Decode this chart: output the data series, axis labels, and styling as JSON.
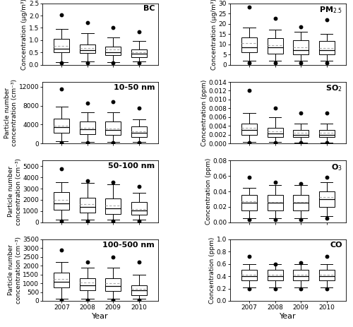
{
  "panels_left": [
    {
      "title": "BC",
      "title_bold": true,
      "ylabel": "Concentration (μg/m³)",
      "ylim": [
        0.0,
        2.5
      ],
      "yticks": [
        0.0,
        0.5,
        1.0,
        1.5,
        2.0,
        2.5
      ],
      "ytick_labels": [
        "0.0",
        "0.5",
        "1.0",
        "1.5",
        "2.0",
        "2.5"
      ],
      "years": [
        "2007",
        "2008",
        "2009",
        "2010"
      ],
      "p5": [
        0.08,
        0.08,
        0.08,
        0.08
      ],
      "p10": [
        0.12,
        0.14,
        0.12,
        0.13
      ],
      "q25": [
        0.52,
        0.48,
        0.38,
        0.32
      ],
      "med": [
        0.65,
        0.58,
        0.5,
        0.44
      ],
      "mean": [
        0.78,
        0.67,
        0.62,
        0.52
      ],
      "q75": [
        1.05,
        0.82,
        0.73,
        0.63
      ],
      "p90": [
        1.45,
        1.28,
        1.12,
        0.98
      ],
      "p95": [
        2.02,
        1.7,
        1.52,
        1.35
      ]
    },
    {
      "title": "10-50 nm",
      "title_bold": true,
      "ylabel": "Particle number\nconcentration (cm⁻³)",
      "ylim": [
        0,
        13000
      ],
      "yticks": [
        0,
        4000,
        8000,
        12000
      ],
      "ytick_labels": [
        "0",
        "4000",
        "8000",
        "12000"
      ],
      "years": [
        "2007",
        "2008",
        "2009",
        "2010"
      ],
      "p5": [
        200,
        180,
        180,
        180
      ],
      "p10": [
        400,
        380,
        350,
        330
      ],
      "q25": [
        2200,
        1900,
        1800,
        1300
      ],
      "med": [
        3400,
        3000,
        2800,
        2200
      ],
      "mean": [
        3700,
        3300,
        3100,
        2600
      ],
      "q75": [
        5200,
        4600,
        4600,
        3600
      ],
      "p90": [
        7800,
        6600,
        6600,
        5100
      ],
      "p95": [
        11500,
        8500,
        8800,
        7500
      ]
    },
    {
      "title": "50-100 nm",
      "title_bold": true,
      "ylabel": "Particle number\nconcentration (cm⁻³)",
      "ylim": [
        0,
        5500
      ],
      "yticks": [
        0,
        1000,
        2000,
        3000,
        4000,
        5000
      ],
      "ytick_labels": [
        "0",
        "1000",
        "2000",
        "3000",
        "4000",
        "5000"
      ],
      "years": [
        "2007",
        "2008",
        "2009",
        "2010"
      ],
      "p5": [
        100,
        100,
        100,
        100
      ],
      "p10": [
        200,
        200,
        200,
        200
      ],
      "q25": [
        1100,
        850,
        750,
        650
      ],
      "med": [
        1700,
        1350,
        1250,
        1050
      ],
      "mean": [
        2000,
        1600,
        1500,
        1200
      ],
      "q75": [
        2700,
        2200,
        2100,
        1800
      ],
      "p90": [
        3600,
        3500,
        3400,
        2600
      ],
      "p95": [
        4800,
        3700,
        3600,
        3200
      ]
    },
    {
      "title": "100-500 nm",
      "title_bold": true,
      "ylabel": "Particle number\nconcentration (cm⁻³)",
      "ylim": [
        0,
        3500
      ],
      "yticks": [
        0,
        500,
        1000,
        1500,
        2000,
        2500,
        3000,
        3500
      ],
      "ytick_labels": [
        "0",
        "500",
        "1000",
        "1500",
        "2000",
        "2500",
        "3000",
        "3500"
      ],
      "years": [
        "2007",
        "2008",
        "2009",
        "2010"
      ],
      "p5": [
        50,
        50,
        50,
        50
      ],
      "p10": [
        100,
        100,
        100,
        100
      ],
      "q25": [
        750,
        600,
        550,
        300
      ],
      "med": [
        1100,
        900,
        850,
        600
      ],
      "mean": [
        1250,
        1050,
        1000,
        700
      ],
      "q75": [
        1600,
        1300,
        1300,
        900
      ],
      "p90": [
        2200,
        1900,
        1900,
        1500
      ],
      "p95": [
        2900,
        2200,
        2500,
        2200
      ]
    }
  ],
  "panels_right": [
    {
      "title": "PM$_{2.5}$",
      "title_bold": true,
      "ylabel": "Concentration (μg/m³)",
      "ylim": [
        0,
        30
      ],
      "yticks": [
        0,
        5,
        10,
        15,
        20,
        25,
        30
      ],
      "ytick_labels": [
        "0",
        "5",
        "10",
        "15",
        "20",
        "25",
        "30"
      ],
      "years": [
        "2007",
        "2008",
        "2009",
        "2010"
      ],
      "p5": [
        1.0,
        1.0,
        1.0,
        1.0
      ],
      "p10": [
        2.0,
        2.0,
        2.0,
        2.0
      ],
      "q25": [
        6.0,
        5.5,
        5.0,
        5.0
      ],
      "med": [
        8.5,
        8.5,
        7.0,
        7.0
      ],
      "mean": [
        10.5,
        9.5,
        8.5,
        8.0
      ],
      "q75": [
        13.5,
        13.0,
        12.0,
        11.5
      ],
      "p90": [
        18.0,
        17.0,
        16.0,
        15.0
      ],
      "p95": [
        28.0,
        22.5,
        18.5,
        22.0
      ]
    },
    {
      "title": "SO$_2$",
      "title_bold": true,
      "ylabel": "Concentration (ppm)",
      "ylim": [
        0.0,
        0.014
      ],
      "yticks": [
        0.0,
        0.002,
        0.004,
        0.006,
        0.008,
        0.01,
        0.012,
        0.014
      ],
      "ytick_labels": [
        "0.000",
        "0.002",
        "0.004",
        "0.006",
        "0.008",
        "0.010",
        "0.012",
        "0.014"
      ],
      "years": [
        "2007",
        "2008",
        "2009",
        "2010"
      ],
      "p5": [
        0.0002,
        0.00015,
        0.0001,
        0.0001
      ],
      "p10": [
        0.0004,
        0.0003,
        0.0002,
        0.0002
      ],
      "q25": [
        0.002,
        0.0015,
        0.0014,
        0.0014
      ],
      "med": [
        0.003,
        0.0022,
        0.002,
        0.002
      ],
      "mean": [
        0.0035,
        0.0028,
        0.0025,
        0.0025
      ],
      "q75": [
        0.0045,
        0.0035,
        0.003,
        0.003
      ],
      "p90": [
        0.007,
        0.006,
        0.0045,
        0.0045
      ],
      "p95": [
        0.012,
        0.008,
        0.007,
        0.007
      ]
    },
    {
      "title": "O$_3$",
      "title_bold": true,
      "ylabel": "Concentration (ppm)",
      "ylim": [
        0.0,
        0.08
      ],
      "yticks": [
        0.0,
        0.02,
        0.04,
        0.06,
        0.08
      ],
      "ytick_labels": [
        "0.00",
        "0.02",
        "0.04",
        "0.06",
        "0.08"
      ],
      "years": [
        "2007",
        "2008",
        "2009",
        "2010"
      ],
      "p5": [
        0.003,
        0.003,
        0.003,
        0.005
      ],
      "p10": [
        0.005,
        0.005,
        0.005,
        0.008
      ],
      "q25": [
        0.015,
        0.015,
        0.015,
        0.02
      ],
      "med": [
        0.025,
        0.025,
        0.025,
        0.03
      ],
      "mean": [
        0.027,
        0.026,
        0.026,
        0.033
      ],
      "q75": [
        0.035,
        0.035,
        0.035,
        0.04
      ],
      "p90": [
        0.045,
        0.048,
        0.048,
        0.052
      ],
      "p95": [
        0.058,
        0.052,
        0.05,
        0.058
      ]
    },
    {
      "title": "CO",
      "title_bold": true,
      "ylabel": "Concentration (ppm)",
      "ylim": [
        0.0,
        1.0
      ],
      "yticks": [
        0.0,
        0.2,
        0.4,
        0.6,
        0.8,
        1.0
      ],
      "ytick_labels": [
        "0.0",
        "0.2",
        "0.4",
        "0.6",
        "0.8",
        "1.0"
      ],
      "years": [
        "2007",
        "2008",
        "2009",
        "2010"
      ],
      "p5": [
        0.2,
        0.2,
        0.2,
        0.2
      ],
      "p10": [
        0.22,
        0.22,
        0.22,
        0.22
      ],
      "q25": [
        0.33,
        0.33,
        0.33,
        0.33
      ],
      "med": [
        0.4,
        0.4,
        0.4,
        0.4
      ],
      "mean": [
        0.42,
        0.42,
        0.42,
        0.42
      ],
      "q75": [
        0.5,
        0.5,
        0.5,
        0.5
      ],
      "p90": [
        0.6,
        0.6,
        0.6,
        0.6
      ],
      "p95": [
        0.72,
        0.6,
        0.62,
        0.72
      ]
    }
  ],
  "box_facecolor": "white",
  "box_edgecolor": "black",
  "median_color": "black",
  "mean_color": "#aaaaaa",
  "whisker_color": "black",
  "flier_color": "black",
  "xlabel": "Year",
  "title_fontsize": 8,
  "label_fontsize": 6.5,
  "tick_fontsize": 6.5
}
